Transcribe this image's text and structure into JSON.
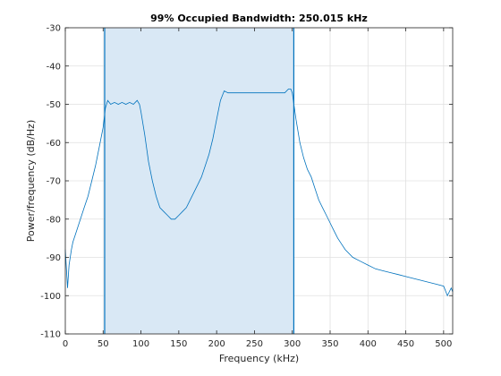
{
  "chart_data": {
    "type": "line",
    "title": "99% Occupied Bandwidth: 250.015 kHz",
    "xlabel": "Frequency (kHz)",
    "ylabel": "Power/frequency (dB/Hz)",
    "xlim": [
      0,
      512
    ],
    "ylim": [
      -110,
      -30
    ],
    "xticks": [
      0,
      50,
      100,
      150,
      200,
      250,
      300,
      350,
      400,
      450,
      500
    ],
    "yticks": [
      -30,
      -40,
      -50,
      -60,
      -70,
      -80,
      -90,
      -100,
      -110
    ],
    "grid": true,
    "occupied_band": {
      "start": 52,
      "end": 302
    },
    "colors": {
      "line": "#0072bd",
      "band_fill": "#d9e8f5",
      "band_edge": "#0072bd",
      "grid": "#e0e0e0"
    },
    "series": [
      {
        "points": [
          [
            0,
            -88
          ],
          [
            3,
            -98
          ],
          [
            5,
            -92
          ],
          [
            8,
            -88
          ],
          [
            10,
            -86
          ],
          [
            15,
            -83
          ],
          [
            20,
            -80
          ],
          [
            25,
            -77
          ],
          [
            30,
            -74
          ],
          [
            35,
            -70
          ],
          [
            40,
            -66
          ],
          [
            45,
            -61
          ],
          [
            50,
            -56
          ],
          [
            53,
            -51
          ],
          [
            56,
            -49
          ],
          [
            60,
            -50
          ],
          [
            65,
            -49.5
          ],
          [
            70,
            -50
          ],
          [
            75,
            -49.5
          ],
          [
            80,
            -50
          ],
          [
            85,
            -49.5
          ],
          [
            90,
            -50
          ],
          [
            95,
            -49
          ],
          [
            98,
            -50
          ],
          [
            100,
            -52
          ],
          [
            105,
            -58
          ],
          [
            110,
            -65
          ],
          [
            115,
            -70
          ],
          [
            120,
            -74
          ],
          [
            125,
            -77
          ],
          [
            130,
            -78
          ],
          [
            135,
            -79
          ],
          [
            140,
            -80
          ],
          [
            145,
            -80
          ],
          [
            150,
            -79
          ],
          [
            155,
            -78
          ],
          [
            160,
            -77
          ],
          [
            165,
            -75
          ],
          [
            170,
            -73
          ],
          [
            175,
            -71
          ],
          [
            180,
            -69
          ],
          [
            185,
            -66
          ],
          [
            190,
            -63
          ],
          [
            195,
            -59
          ],
          [
            200,
            -54
          ],
          [
            205,
            -49
          ],
          [
            210,
            -46.5
          ],
          [
            215,
            -47
          ],
          [
            220,
            -47
          ],
          [
            230,
            -47
          ],
          [
            240,
            -47
          ],
          [
            250,
            -47
          ],
          [
            260,
            -47
          ],
          [
            270,
            -47
          ],
          [
            280,
            -47
          ],
          [
            290,
            -47
          ],
          [
            295,
            -46
          ],
          [
            298,
            -46
          ],
          [
            300,
            -47
          ],
          [
            305,
            -54
          ],
          [
            310,
            -60
          ],
          [
            315,
            -64
          ],
          [
            320,
            -67
          ],
          [
            325,
            -69
          ],
          [
            330,
            -72
          ],
          [
            335,
            -75
          ],
          [
            340,
            -77
          ],
          [
            345,
            -79
          ],
          [
            350,
            -81
          ],
          [
            355,
            -83
          ],
          [
            360,
            -85
          ],
          [
            370,
            -88
          ],
          [
            380,
            -90
          ],
          [
            390,
            -91
          ],
          [
            400,
            -92
          ],
          [
            410,
            -93
          ],
          [
            420,
            -93.5
          ],
          [
            430,
            -94
          ],
          [
            440,
            -94.5
          ],
          [
            450,
            -95
          ],
          [
            460,
            -95.5
          ],
          [
            470,
            -96
          ],
          [
            480,
            -96.5
          ],
          [
            490,
            -97
          ],
          [
            500,
            -97.5
          ],
          [
            505,
            -100
          ],
          [
            510,
            -98
          ],
          [
            512,
            -99
          ]
        ]
      }
    ]
  }
}
